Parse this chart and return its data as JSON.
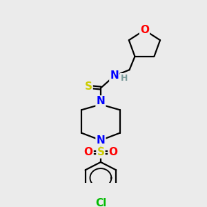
{
  "bg_color": "#ebebeb",
  "bond_color": "#000000",
  "bond_width": 1.6,
  "atom_colors": {
    "O": "#ff0000",
    "N": "#0000ff",
    "S_thio": "#cccc00",
    "S_sulfonyl": "#cccc00",
    "Cl": "#00bb00",
    "H": "#7a9a9a",
    "C": "#000000"
  },
  "font_size_atoms": 11,
  "font_size_H": 9,
  "font_size_Cl": 11
}
